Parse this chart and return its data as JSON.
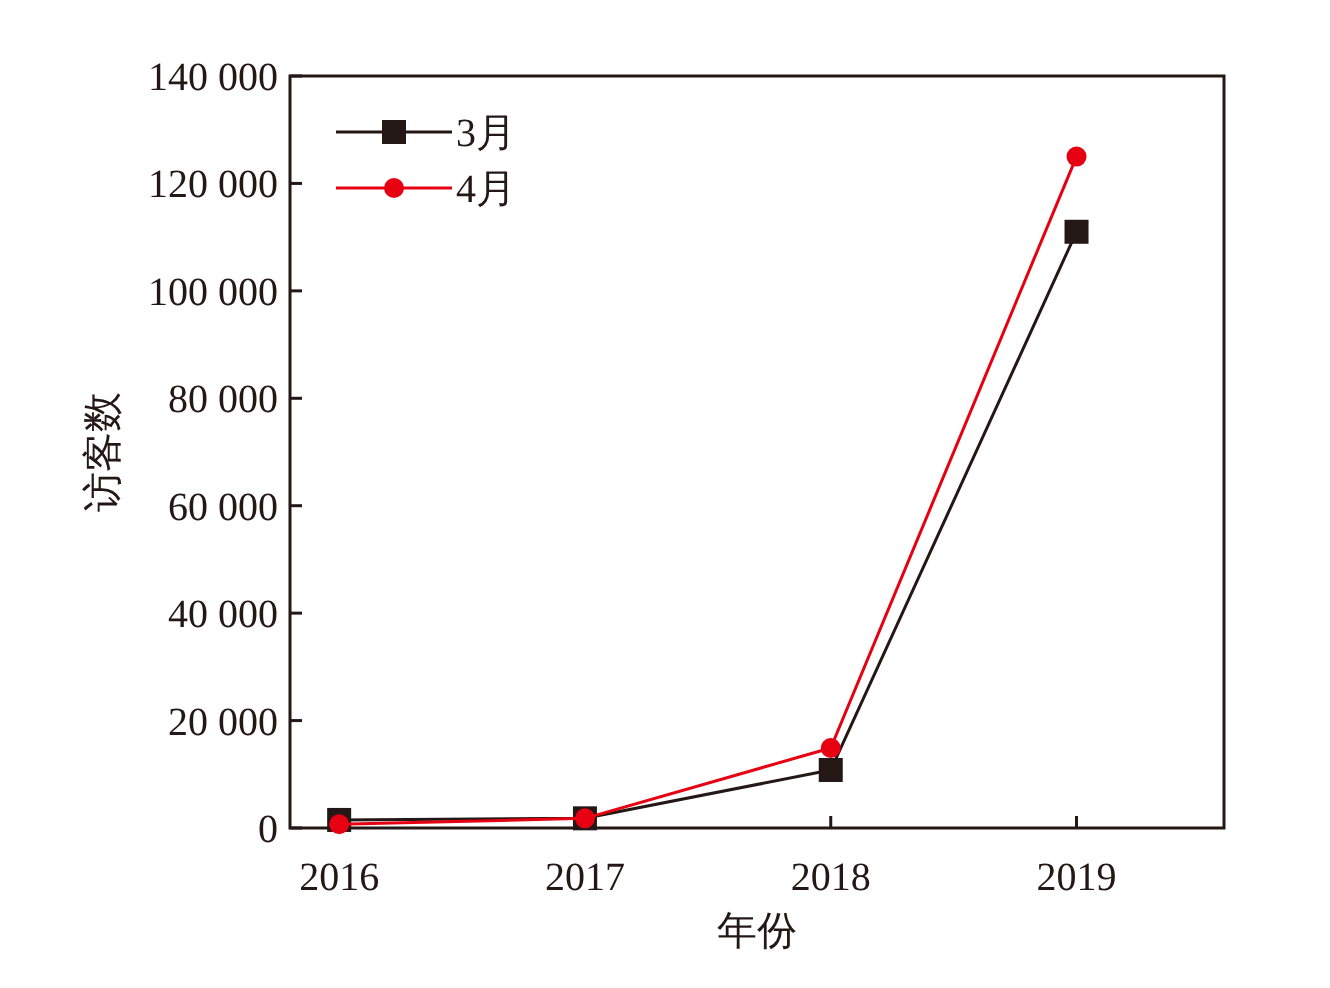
{
  "chart_data": {
    "type": "line",
    "xlabel": "年份",
    "ylabel": "访客数",
    "categories": [
      "2016",
      "2017",
      "2018",
      "2019"
    ],
    "series": [
      {
        "name": "3月",
        "color": "#231815",
        "marker": "square",
        "values": [
          1500,
          1800,
          10800,
          111000
        ]
      },
      {
        "name": "4月",
        "color": "#e60012",
        "marker": "circle",
        "values": [
          700,
          1800,
          14900,
          125000
        ]
      }
    ],
    "ylim": [
      0,
      140000
    ],
    "yticks": [
      {
        "value": 0,
        "label": "0"
      },
      {
        "value": 20000,
        "label": "20 000"
      },
      {
        "value": 40000,
        "label": "40 000"
      },
      {
        "value": 60000,
        "label": "60 000"
      },
      {
        "value": 80000,
        "label": "80 000"
      },
      {
        "value": 100000,
        "label": "100 000"
      },
      {
        "value": 120000,
        "label": "120 000"
      },
      {
        "value": 140000,
        "label": "140 000"
      }
    ],
    "legend": "top left",
    "grid": false
  }
}
